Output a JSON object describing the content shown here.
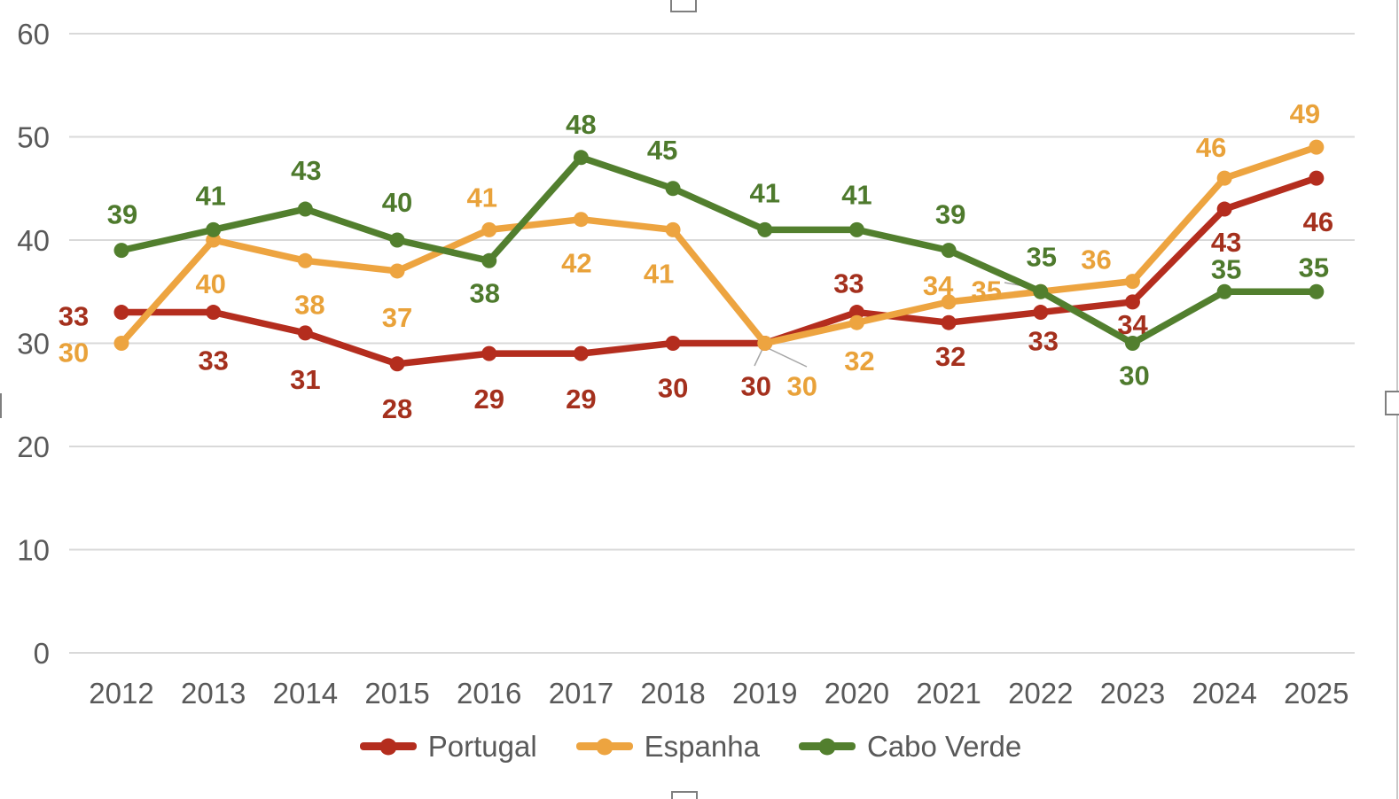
{
  "chart_data": {
    "type": "line",
    "title": "",
    "categories": [
      "2012",
      "2013",
      "2014",
      "2015",
      "2016",
      "2017",
      "2018",
      "2019",
      "2020",
      "2021",
      "2022",
      "2023",
      "2024",
      "2025"
    ],
    "series": [
      {
        "name": "Portugal",
        "color": "#B42D1E",
        "label_color": "#A4301D",
        "values": [
          33,
          33,
          31,
          28,
          29,
          29,
          30,
          30,
          33,
          32,
          33,
          34,
          43,
          46
        ],
        "label_offsets": [
          [
            -54,
            4
          ],
          [
            0,
            54
          ],
          [
            0,
            52
          ],
          [
            0,
            50
          ],
          [
            0,
            51
          ],
          [
            0,
            51
          ],
          [
            0,
            50
          ],
          [
            -10,
            48
          ],
          [
            -9,
            -33
          ],
          [
            2,
            38
          ],
          [
            3,
            32
          ],
          [
            0,
            25
          ],
          [
            2,
            37
          ],
          [
            2,
            49
          ]
        ]
      },
      {
        "name": "Espanha",
        "color": "#EDA440",
        "label_color": "#E9A23A",
        "values": [
          30,
          40,
          38,
          37,
          41,
          42,
          41,
          30,
          32,
          34,
          35,
          36,
          46,
          49
        ],
        "label_offsets": [
          [
            -54,
            10
          ],
          [
            -3,
            49
          ],
          [
            5,
            49
          ],
          [
            0,
            52
          ],
          [
            -8,
            -37
          ],
          [
            -5,
            49
          ],
          [
            -16,
            49
          ],
          [
            42,
            48
          ],
          [
            3,
            43
          ],
          [
            -12,
            -19
          ],
          [
            -61,
            -2
          ],
          [
            -41,
            -25
          ],
          [
            -15,
            -35
          ],
          [
            -13,
            -38
          ]
        ]
      },
      {
        "name": "Cabo Verde",
        "color": "#527F2E",
        "label_color": "#4E7A2D",
        "values": [
          39,
          41,
          43,
          40,
          38,
          48,
          45,
          41,
          41,
          39,
          35,
          30,
          35,
          35
        ],
        "label_offsets": [
          [
            1,
            -41
          ],
          [
            -3,
            -39
          ],
          [
            1,
            -44
          ],
          [
            0,
            -43
          ],
          [
            -5,
            36
          ],
          [
            0,
            -38
          ],
          [
            -12,
            -44
          ],
          [
            0,
            -42
          ],
          [
            0,
            -40
          ],
          [
            2,
            -41
          ],
          [
            1,
            -40
          ],
          [
            2,
            36
          ],
          [
            2,
            -26
          ],
          [
            -3,
            -28
          ]
        ]
      }
    ],
    "xlabel": "",
    "ylabel": "",
    "ylim": [
      0,
      60
    ],
    "yticks": [
      0,
      10,
      20,
      30,
      40,
      50,
      60
    ],
    "grid": true,
    "grid_color": "#D9D9D9",
    "axis_text_color": "#595959",
    "leader_line_color": "#A6A6A6",
    "leader_lines": [
      [
        860,
        394,
        851,
        413
      ],
      [
        866,
        393,
        910,
        414
      ],
      [
        1172,
        326,
        1133,
        319
      ]
    ],
    "legend_position": "bottom"
  }
}
